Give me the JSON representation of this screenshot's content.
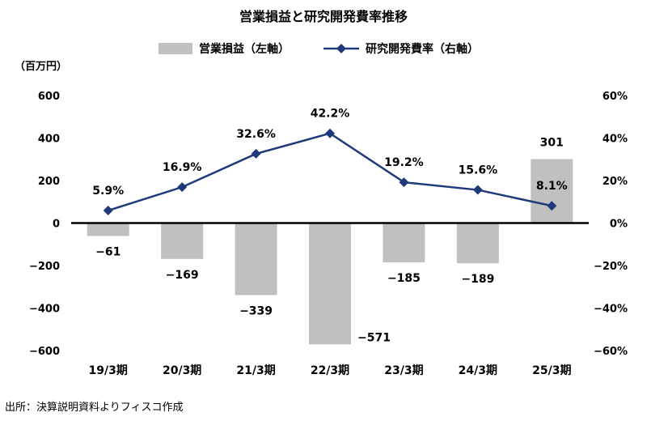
{
  "chart_data": {
    "type": "bar+line",
    "title": "営業損益と研究開発費率推移",
    "y_left_unit": "（百万円）",
    "categories": [
      "19/3期",
      "20/3期",
      "21/3期",
      "22/3期",
      "23/3期",
      "24/3期",
      "25/3期"
    ],
    "series": [
      {
        "name": "営業損益（左軸）",
        "type": "bar",
        "axis": "left",
        "color": "#c0c0c0",
        "values": [
          -61,
          -169,
          -339,
          -571,
          -185,
          -189,
          301
        ],
        "labels": [
          "−61",
          "−169",
          "−339",
          "−571",
          "−185",
          "−189",
          "301"
        ]
      },
      {
        "name": "研究開発費率（右軸）",
        "type": "line",
        "axis": "right",
        "color": "#1f3a7a",
        "values": [
          5.9,
          16.9,
          32.6,
          42.2,
          19.2,
          15.6,
          8.1
        ],
        "labels": [
          "5.9%",
          "16.9%",
          "32.6%",
          "42.2%",
          "19.2%",
          "15.6%",
          "8.1%"
        ]
      }
    ],
    "y_left": {
      "min": -600,
      "max": 600,
      "ticks": [
        "600",
        "400",
        "200",
        "0",
        "−200",
        "−400",
        "−600"
      ],
      "tick_values": [
        600,
        400,
        200,
        0,
        -200,
        -400,
        -600
      ]
    },
    "y_right": {
      "min": -60,
      "max": 60,
      "ticks": [
        "60%",
        "40%",
        "20%",
        "0%",
        "−20%",
        "−40%",
        "−60%"
      ],
      "tick_values": [
        60,
        40,
        20,
        0,
        -20,
        -40,
        -60
      ]
    },
    "legend_position": "top-center",
    "grid": false
  },
  "source": "出所：決算説明資料よりフィスコ作成"
}
